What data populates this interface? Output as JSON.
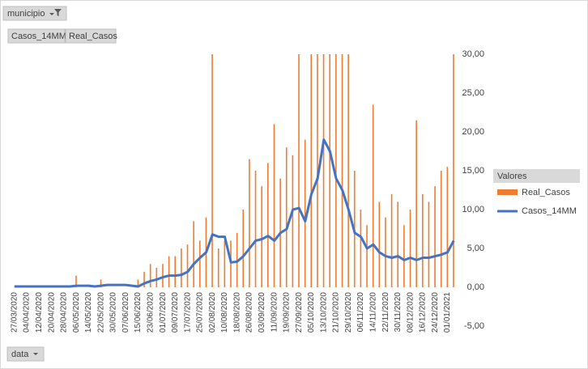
{
  "chart_data": {
    "type": "bar_line",
    "filter_field": "municipio",
    "axis_field": "data",
    "legend_title": "Valores",
    "categories": [
      "27/03/2020",
      null,
      "04/04/2020",
      null,
      "12/04/2020",
      null,
      "20/04/2020",
      null,
      "28/04/2020",
      null,
      "06/05/2020",
      null,
      "14/05/2020",
      null,
      "22/05/2020",
      null,
      "30/05/2020",
      null,
      "07/06/2020",
      null,
      "15/06/2020",
      null,
      "23/06/2020",
      null,
      "01/07/2020",
      null,
      "09/07/2020",
      null,
      "17/07/2020",
      null,
      "25/07/2020",
      null,
      "02/08/2020",
      null,
      "10/08/2020",
      null,
      "18/08/2020",
      null,
      "26/08/2020",
      null,
      "03/09/2020",
      null,
      "11/09/2020",
      null,
      "19/09/2020",
      null,
      "27/09/2020",
      null,
      "05/10/2020",
      null,
      "13/10/2020",
      null,
      "21/10/2020",
      null,
      "29/10/2020",
      null,
      "06/11/2020",
      null,
      "14/11/2020",
      null,
      "22/11/2020",
      null,
      "30/11/2020",
      null,
      "08/12/2020",
      null,
      "16/12/2020",
      null,
      "24/12/2020",
      null,
      "01/01/2021",
      null
    ],
    "series": [
      {
        "name": "Real_Casos",
        "color": "#ed7d31",
        "kind": "bar",
        "values": [
          0,
          0,
          0,
          0,
          0,
          0,
          0,
          0,
          0,
          0,
          1.5,
          0,
          0,
          0,
          1,
          0,
          0,
          0,
          0,
          0,
          1,
          2,
          3,
          2.5,
          3,
          4,
          4,
          5,
          5.5,
          8.5,
          6,
          9,
          30,
          5,
          6,
          6,
          7,
          10,
          16.5,
          15,
          13,
          16,
          21,
          14,
          18,
          17,
          30,
          19,
          30,
          30,
          30,
          30,
          30,
          30,
          30,
          15,
          10,
          8,
          23.5,
          11,
          9,
          12,
          11,
          8,
          10,
          21.5,
          12,
          11,
          13,
          15,
          15.5,
          30
        ]
      },
      {
        "name": "Casos_14MM",
        "color": "#4472c4",
        "kind": "line",
        "values": [
          0.1,
          0.1,
          0.1,
          0.1,
          0.1,
          0.1,
          0.1,
          0.1,
          0.1,
          0.1,
          0.2,
          0.2,
          0.2,
          0.1,
          0.2,
          0.3,
          0.3,
          0.3,
          0.3,
          0.2,
          0.1,
          0.5,
          0.8,
          1.0,
          1.3,
          1.5,
          1.5,
          1.6,
          2.0,
          3.0,
          3.8,
          4.5,
          6.8,
          6.5,
          6.5,
          3.2,
          3.3,
          4.0,
          5.0,
          6.0,
          6.2,
          6.6,
          6.0,
          7.0,
          7.5,
          10.0,
          10.2,
          8.5,
          12.0,
          14.0,
          19.0,
          17.5,
          14.0,
          12.5,
          10.0,
          7.0,
          6.5,
          5.0,
          5.5,
          4.5,
          4.0,
          3.8,
          4.0,
          3.5,
          3.8,
          3.5,
          3.8,
          3.8,
          4.0,
          4.2,
          4.5,
          6.0
        ]
      }
    ],
    "ylim": [
      -5,
      30
    ],
    "yticks": [
      {
        "value": -5,
        "label": "-5,00"
      },
      {
        "value": 0,
        "label": "0,00"
      },
      {
        "value": 5,
        "label": "5,00"
      },
      {
        "value": 10,
        "label": "10,00"
      },
      {
        "value": 15,
        "label": "15,00"
      },
      {
        "value": 20,
        "label": "20,00"
      },
      {
        "value": 25,
        "label": "25,00"
      },
      {
        "value": 30,
        "label": "30,00"
      }
    ],
    "grid": false
  }
}
